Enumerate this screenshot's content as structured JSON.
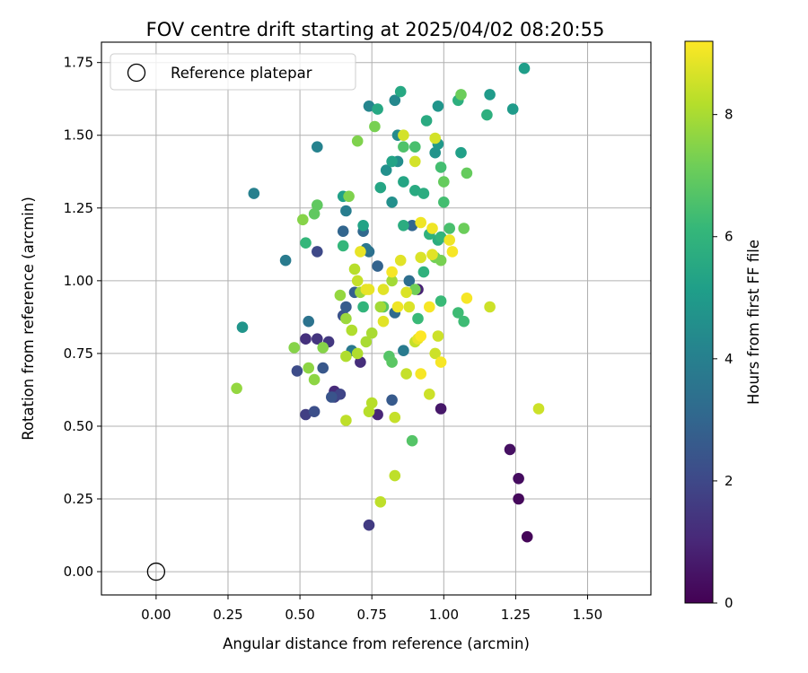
{
  "chart_data": {
    "type": "scatter",
    "title": "FOV centre drift starting at 2025/04/02 08:20:55",
    "xlabel": "Angular distance from reference (arcmin)",
    "ylabel": "Rotation from reference (arcmin)",
    "xlim": [
      -0.19,
      1.72
    ],
    "ylim": [
      -0.08,
      1.82
    ],
    "xticks": [
      "0.00",
      "0.25",
      "0.50",
      "0.75",
      "1.00",
      "1.25",
      "1.50"
    ],
    "yticks": [
      "0.00",
      "0.25",
      "0.50",
      "0.75",
      "1.00",
      "1.25",
      "1.50",
      "1.75"
    ],
    "grid": true,
    "legend": {
      "placement": "top-left",
      "entries": [
        "Reference platepar"
      ]
    },
    "reference_point": {
      "x": 0.0,
      "y": 0.0
    },
    "colorbar": {
      "label": "Hours from first FF file",
      "range": [
        0,
        9.2
      ],
      "ticks": [
        "0",
        "2",
        "4",
        "6",
        "8"
      ],
      "colormap": [
        "#440154",
        "#482878",
        "#3e4a89",
        "#31688e",
        "#26828e",
        "#1f9e89",
        "#35b779",
        "#6ece58",
        "#b5de2b",
        "#fde725"
      ]
    },
    "points": [
      [
        1.29,
        0.12,
        0.1
      ],
      [
        1.26,
        0.25,
        0.2
      ],
      [
        1.26,
        0.32,
        0.3
      ],
      [
        1.23,
        0.42,
        0.4
      ],
      [
        0.99,
        0.56,
        0.6
      ],
      [
        0.91,
        0.97,
        0.9
      ],
      [
        0.77,
        0.54,
        1.0
      ],
      [
        0.62,
        0.62,
        1.1
      ],
      [
        0.71,
        0.72,
        1.2
      ],
      [
        0.52,
        0.8,
        1.3
      ],
      [
        0.56,
        0.8,
        1.4
      ],
      [
        0.6,
        0.79,
        1.5
      ],
      [
        0.74,
        0.16,
        1.6
      ],
      [
        0.52,
        0.54,
        1.7
      ],
      [
        0.62,
        0.6,
        1.8
      ],
      [
        0.64,
        0.61,
        1.9
      ],
      [
        0.56,
        1.1,
        2.0
      ],
      [
        0.49,
        0.69,
        2.1
      ],
      [
        0.55,
        0.55,
        2.2
      ],
      [
        0.65,
        0.88,
        2.3
      ],
      [
        0.61,
        0.6,
        2.4
      ],
      [
        0.58,
        0.7,
        2.5
      ],
      [
        0.82,
        0.59,
        2.6
      ],
      [
        0.66,
        0.91,
        2.7
      ],
      [
        0.69,
        0.96,
        2.8
      ],
      [
        0.77,
        1.05,
        2.9
      ],
      [
        0.89,
        1.19,
        3.0
      ],
      [
        0.65,
        1.17,
        3.0
      ],
      [
        0.72,
        1.17,
        3.1
      ],
      [
        0.83,
        0.89,
        3.2
      ],
      [
        0.88,
        1.0,
        3.3
      ],
      [
        0.74,
        1.1,
        3.4
      ],
      [
        0.53,
        0.86,
        3.5
      ],
      [
        0.73,
        1.11,
        3.6
      ],
      [
        0.68,
        0.76,
        3.7
      ],
      [
        0.86,
        0.76,
        3.8
      ],
      [
        0.45,
        1.07,
        3.8
      ],
      [
        0.66,
        1.24,
        3.9
      ],
      [
        0.34,
        1.3,
        4.0
      ],
      [
        0.56,
        1.46,
        4.1
      ],
      [
        0.74,
        1.6,
        4.2
      ],
      [
        0.83,
        1.62,
        4.3
      ],
      [
        0.84,
        1.5,
        4.4
      ],
      [
        0.84,
        1.41,
        4.5
      ],
      [
        0.82,
        1.27,
        4.6
      ],
      [
        0.8,
        1.38,
        4.6
      ],
      [
        0.97,
        1.44,
        4.7
      ],
      [
        0.3,
        0.84,
        4.8
      ],
      [
        0.98,
        1.6,
        4.8
      ],
      [
        0.98,
        1.47,
        4.9
      ],
      [
        1.16,
        1.64,
        5.0
      ],
      [
        1.24,
        1.59,
        5.0
      ],
      [
        1.28,
        1.73,
        5.1
      ],
      [
        1.06,
        1.44,
        5.2
      ],
      [
        0.65,
        1.29,
        5.2
      ],
      [
        0.72,
        1.19,
        5.3
      ],
      [
        0.82,
        1.41,
        5.3
      ],
      [
        0.86,
        1.34,
        5.4
      ],
      [
        0.78,
        1.32,
        5.4
      ],
      [
        0.85,
        1.65,
        5.5
      ],
      [
        0.77,
        1.59,
        5.5
      ],
      [
        0.94,
        1.55,
        5.6
      ],
      [
        0.9,
        1.31,
        5.6
      ],
      [
        0.93,
        1.3,
        5.7
      ],
      [
        0.98,
        1.14,
        5.7
      ],
      [
        1.15,
        1.57,
        5.8
      ],
      [
        1.05,
        1.62,
        5.8
      ],
      [
        0.93,
        1.03,
        5.9
      ],
      [
        0.95,
        1.16,
        5.9
      ],
      [
        0.99,
        1.15,
        6.0
      ],
      [
        0.72,
        0.91,
        6.0
      ],
      [
        0.65,
        1.12,
        6.1
      ],
      [
        0.52,
        1.13,
        6.1
      ],
      [
        0.91,
        0.87,
        6.2
      ],
      [
        0.99,
        0.93,
        6.2
      ],
      [
        1.05,
        0.89,
        6.3
      ],
      [
        1.07,
        0.86,
        6.3
      ],
      [
        1.0,
        1.27,
        6.4
      ],
      [
        0.99,
        1.39,
        6.4
      ],
      [
        1.02,
        1.18,
        6.5
      ],
      [
        0.9,
        1.46,
        6.5
      ],
      [
        0.86,
        1.46,
        6.6
      ],
      [
        0.89,
        0.45,
        6.7
      ],
      [
        0.81,
        0.74,
        6.7
      ],
      [
        0.79,
        0.91,
        6.8
      ],
      [
        0.82,
        0.72,
        6.8
      ],
      [
        0.55,
        1.23,
        6.9
      ],
      [
        0.56,
        1.26,
        6.9
      ],
      [
        1.0,
        1.34,
        7.0
      ],
      [
        1.08,
        1.37,
        7.0
      ],
      [
        1.06,
        1.64,
        7.1
      ],
      [
        1.07,
        1.18,
        7.1
      ],
      [
        0.9,
        0.97,
        7.2
      ],
      [
        0.97,
        1.08,
        7.2
      ],
      [
        0.99,
        1.07,
        7.3
      ],
      [
        0.76,
        1.53,
        7.3
      ],
      [
        0.7,
        1.48,
        7.4
      ],
      [
        0.67,
        1.29,
        7.4
      ],
      [
        0.51,
        1.21,
        7.5
      ],
      [
        0.58,
        0.77,
        7.5
      ],
      [
        0.48,
        0.77,
        7.5
      ],
      [
        0.53,
        0.7,
        7.6
      ],
      [
        0.55,
        0.66,
        7.6
      ],
      [
        0.28,
        0.63,
        7.7
      ],
      [
        0.64,
        0.95,
        7.7
      ],
      [
        0.66,
        0.87,
        7.8
      ],
      [
        0.71,
        0.96,
        7.8
      ],
      [
        0.78,
        0.91,
        7.9
      ],
      [
        0.82,
        1.0,
        7.9
      ],
      [
        0.73,
        0.79,
        8.0
      ],
      [
        0.75,
        0.82,
        8.0
      ],
      [
        0.7,
        0.75,
        8.1
      ],
      [
        0.66,
        0.74,
        8.1
      ],
      [
        0.68,
        0.83,
        8.1
      ],
      [
        0.74,
        0.55,
        8.2
      ],
      [
        0.75,
        0.58,
        8.2
      ],
      [
        0.66,
        0.52,
        8.3
      ],
      [
        0.78,
        0.24,
        8.3
      ],
      [
        0.83,
        0.33,
        8.3
      ],
      [
        0.83,
        0.53,
        8.4
      ],
      [
        0.87,
        0.68,
        8.4
      ],
      [
        0.9,
        0.79,
        8.4
      ],
      [
        0.95,
        0.61,
        8.5
      ],
      [
        0.97,
        0.75,
        8.5
      ],
      [
        0.98,
        0.81,
        8.5
      ],
      [
        1.16,
        0.91,
        8.5
      ],
      [
        1.33,
        0.56,
        8.5
      ],
      [
        0.9,
        1.41,
        8.6
      ],
      [
        0.86,
        1.5,
        8.6
      ],
      [
        0.97,
        1.49,
        8.6
      ],
      [
        0.87,
        0.96,
        8.7
      ],
      [
        0.88,
        0.91,
        8.7
      ],
      [
        0.92,
        1.08,
        8.7
      ],
      [
        0.85,
        1.07,
        8.8
      ],
      [
        0.96,
        1.09,
        8.8
      ],
      [
        0.79,
        0.86,
        8.8
      ],
      [
        0.79,
        0.97,
        8.8
      ],
      [
        0.73,
        0.97,
        8.9
      ],
      [
        0.74,
        0.97,
        8.9
      ],
      [
        0.71,
        1.1,
        8.9
      ],
      [
        0.91,
        0.8,
        8.9
      ],
      [
        0.92,
        1.2,
        9.0
      ],
      [
        0.96,
        1.18,
        9.0
      ],
      [
        1.02,
        1.14,
        9.0
      ],
      [
        0.84,
        0.91,
        9.0
      ],
      [
        0.95,
        0.91,
        9.1
      ],
      [
        0.82,
        1.03,
        9.1
      ],
      [
        1.08,
        0.94,
        9.1
      ],
      [
        1.03,
        1.1,
        9.1
      ],
      [
        0.99,
        0.72,
        9.1
      ],
      [
        0.92,
        0.68,
        9.1
      ],
      [
        0.92,
        0.81,
        9.2
      ],
      [
        0.69,
        1.04,
        8.2
      ],
      [
        0.7,
        1.0,
        8.4
      ],
      [
        0.86,
        1.19,
        5.7
      ]
    ]
  }
}
